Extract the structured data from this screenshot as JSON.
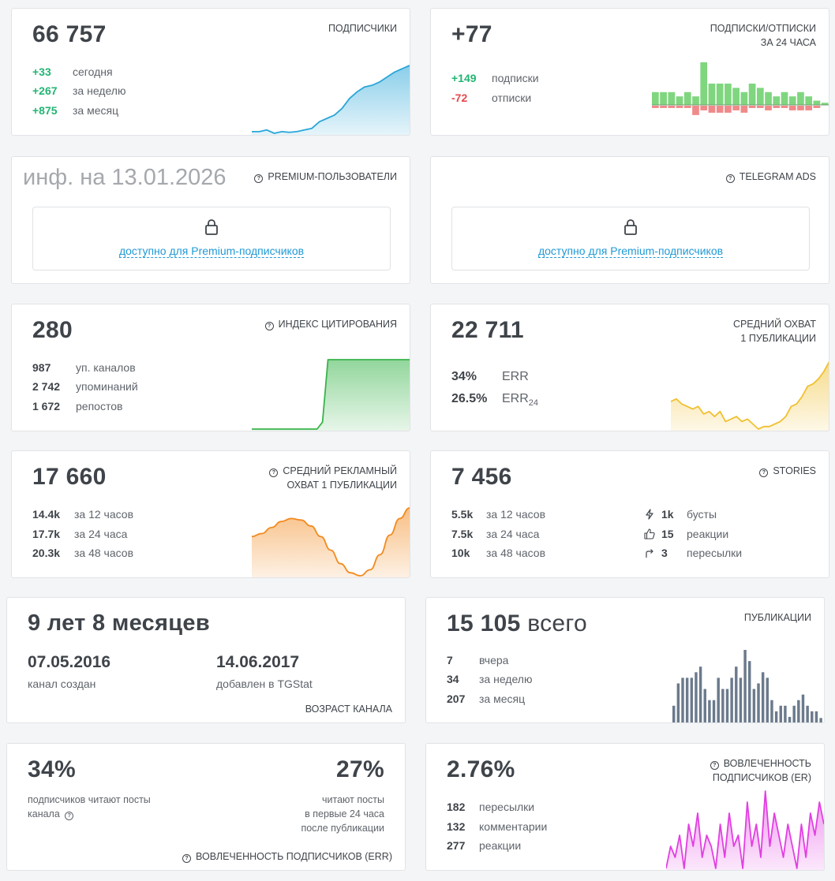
{
  "subscribers": {
    "value": "66 757",
    "title": "ПОДПИСЧИКИ",
    "rows": [
      {
        "v": "+33",
        "l": "сегодня"
      },
      {
        "v": "+267",
        "l": "за неделю"
      },
      {
        "v": "+875",
        "l": "за месяц"
      }
    ]
  },
  "subs_unsubs": {
    "value": "+77",
    "title_line1": "ПОДПИСКИ/ОТПИСКИ",
    "title_line2": "ЗА 24 ЧАСА",
    "rows": [
      {
        "v": "+149",
        "l": "подписки"
      },
      {
        "v": "-72",
        "l": "отписки"
      }
    ]
  },
  "premium_users": {
    "info": "инф. на 13.01.2026",
    "title": "PREMIUM-ПОЛЬЗОВАТЕЛИ",
    "locked_text": "доступно для Premium-подписчиков"
  },
  "telegram_ads": {
    "title": "TELEGRAM ADS",
    "locked_text": "доступно для Premium-подписчиков"
  },
  "citation": {
    "value": "280",
    "title": "ИНДЕКС ЦИТИРОВАНИЯ",
    "rows": [
      {
        "v": "987",
        "l": "уп. каналов"
      },
      {
        "v": "2 742",
        "l": "упоминаний"
      },
      {
        "v": "1 672",
        "l": "репостов"
      }
    ]
  },
  "avg_reach": {
    "value": "22 711",
    "title_line1": "СРЕДНИЙ ОХВАТ",
    "title_line2": "1 ПУБЛИКАЦИИ",
    "rows": [
      {
        "v": "34%",
        "l": "ERR"
      },
      {
        "v": "26.5%",
        "l": "ERR",
        "sub": "24"
      }
    ]
  },
  "ad_reach": {
    "value": "17 660",
    "title_line1": "СРЕДНИЙ РЕКЛАМНЫЙ",
    "title_line2": "ОХВАТ 1 ПУБЛИКАЦИИ",
    "rows": [
      {
        "v": "14.4k",
        "l": "за 12 часов"
      },
      {
        "v": "17.7k",
        "l": "за 24 часа"
      },
      {
        "v": "20.3k",
        "l": "за 48 часов"
      }
    ]
  },
  "stories": {
    "value": "7 456",
    "title": "STORIES",
    "rows": [
      {
        "v": "5.5k",
        "l": "за 12 часов"
      },
      {
        "v": "7.5k",
        "l": "за 24 часа"
      },
      {
        "v": "10k",
        "l": "за 48 часов"
      }
    ],
    "right_rows": [
      {
        "icon": "bolt-icon",
        "v": "1k",
        "l": "бусты"
      },
      {
        "icon": "thumbs-up-icon",
        "v": "15",
        "l": "реакции"
      },
      {
        "icon": "share-arrow-icon",
        "v": "3",
        "l": "пересылки"
      }
    ]
  },
  "age": {
    "value": "9 лет 8 месяцев",
    "created_date": "07.05.2016",
    "created_label": "канал создан",
    "added_date": "14.06.2017",
    "added_label": "добавлен в TGStat",
    "title": "ВОЗРАСТ КАНАЛА"
  },
  "publications": {
    "value": "15 105",
    "value_suffix": "всего",
    "title": "ПУБЛИКАЦИИ",
    "rows": [
      {
        "v": "7",
        "l": "вчера"
      },
      {
        "v": "34",
        "l": "за неделю"
      },
      {
        "v": "207",
        "l": "за месяц"
      }
    ]
  },
  "err_card": {
    "left_value": "34%",
    "left_label_line1": "подписчиков читают посты",
    "left_label_line2": "канала",
    "right_value": "27%",
    "right_label_line1": "читают посты",
    "right_label_line2": "в первые 24 часа",
    "right_label_line3": "после публикации",
    "title": "ВОВЛЕЧЕННОСТЬ ПОДПИСЧИКОВ (ERR)"
  },
  "er_card": {
    "value": "2.76%",
    "title_line1": "ВОВЛЕЧЕННОСТЬ",
    "title_line2": "ПОДПИСЧИКОВ (ER)",
    "rows": [
      {
        "v": "182",
        "l": "пересылки"
      },
      {
        "v": "132",
        "l": "комментарии"
      },
      {
        "v": "277",
        "l": "реакции"
      }
    ]
  },
  "chart_data": [
    {
      "type": "area",
      "name": "subscribers",
      "color": "#2aa6d8",
      "values": [
        2,
        2,
        2.5,
        1.5,
        2,
        1.8,
        2,
        2.5,
        3,
        5,
        6,
        7,
        9,
        12,
        14,
        15.5,
        16,
        17,
        18.5,
        20,
        21,
        22
      ]
    },
    {
      "type": "bar",
      "name": "subs_unsubs",
      "pos_color": "#7fd67f",
      "neg_color": "#f08a8a",
      "pos": [
        3,
        3,
        3,
        2,
        3,
        2,
        10,
        5,
        5,
        5,
        4,
        3,
        5,
        4,
        3,
        2,
        3,
        2,
        3,
        2,
        1,
        0.5
      ],
      "neg": [
        1,
        1,
        1,
        1,
        1,
        4,
        2,
        3,
        3,
        3,
        2,
        3,
        1,
        1,
        2,
        1,
        1,
        2,
        2,
        2,
        1,
        0
      ]
    },
    {
      "type": "area",
      "name": "citation",
      "color": "#39b44a",
      "values": [
        0,
        0,
        0,
        0,
        0,
        0,
        0,
        0,
        0,
        0,
        0,
        0,
        0,
        0.1,
        1,
        1,
        1,
        1,
        1,
        1,
        1,
        1,
        1,
        1,
        1,
        1,
        1,
        1,
        1,
        1
      ]
    },
    {
      "type": "area",
      "name": "avg_reach",
      "color": "#f0c030",
      "values": [
        24,
        25,
        23,
        22,
        21,
        22,
        19,
        20,
        18,
        20,
        16,
        17,
        18,
        16,
        17,
        15,
        13,
        14,
        14,
        15,
        16,
        18,
        22,
        23,
        26,
        30,
        31,
        33,
        36,
        40
      ]
    },
    {
      "type": "area",
      "name": "ad_reach",
      "color": "#f28a1f",
      "values": [
        15.2,
        15.4,
        15.8,
        16.2,
        16.4,
        16.3,
        15.9,
        15.2,
        14.3,
        13.4,
        12.8,
        12.6,
        13,
        14,
        15.3,
        16.4,
        17.1
      ]
    },
    {
      "type": "bar",
      "name": "publications",
      "color": "#6b7a8c",
      "values": [
        3,
        7,
        8,
        8,
        8,
        9,
        10,
        6,
        4,
        4,
        8,
        6,
        6,
        8,
        10,
        8,
        13,
        11,
        6,
        7,
        9,
        8,
        4,
        2,
        3,
        3,
        1,
        3,
        4,
        5,
        3,
        2,
        2,
        0.8
      ]
    },
    {
      "type": "area",
      "name": "er",
      "color": "#e23ee2",
      "values": [
        3,
        5,
        4,
        6,
        3,
        7,
        5,
        8,
        4,
        6,
        5,
        3,
        7,
        4,
        8,
        5,
        6,
        3,
        9,
        5,
        7,
        4,
        10,
        5,
        8,
        6,
        4,
        7,
        5,
        3,
        7,
        4,
        8,
        6,
        9,
        7
      ]
    }
  ]
}
